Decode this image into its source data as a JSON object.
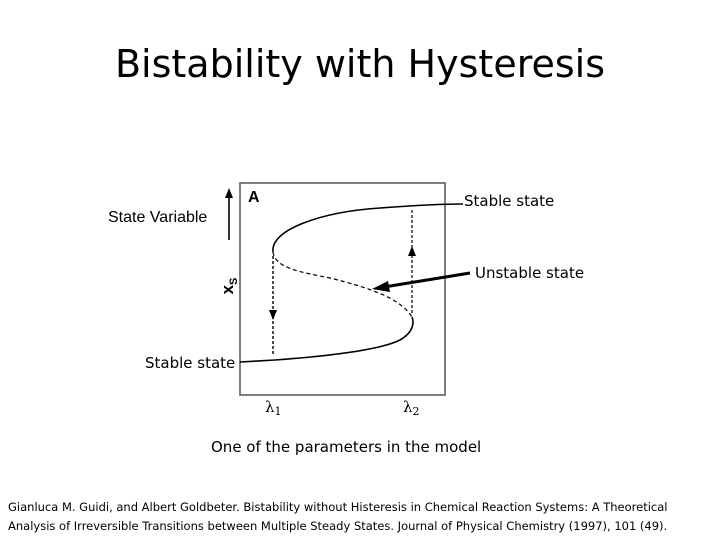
{
  "slide": {
    "title": "Bistability with Hysteresis"
  },
  "diagram": {
    "panel_label": "A",
    "y_axis_symbol": "x",
    "y_axis_subscript": "S",
    "x_tick_1": {
      "symbol": "λ",
      "sub": "1"
    },
    "x_tick_2": {
      "symbol": "λ",
      "sub": "2"
    }
  },
  "annotations": {
    "state_variable": "State Variable",
    "stable_state_upper": "Stable state",
    "unstable_state": "Unstable state",
    "stable_state_lower": "Stable state",
    "parameter": "One of the parameters in the model"
  },
  "citation": {
    "text": "Gianluca M. Guidi, and Albert Goldbeter. Bistability without Histeresis in Chemical Reaction Systems: A Theoretical Analysis of Irreversible Transitions between Multiple Steady States. Journal of Physical Chemistry (1997), 101 (49)."
  },
  "colors": {
    "stroke": "#000000",
    "frame": "#555555"
  }
}
